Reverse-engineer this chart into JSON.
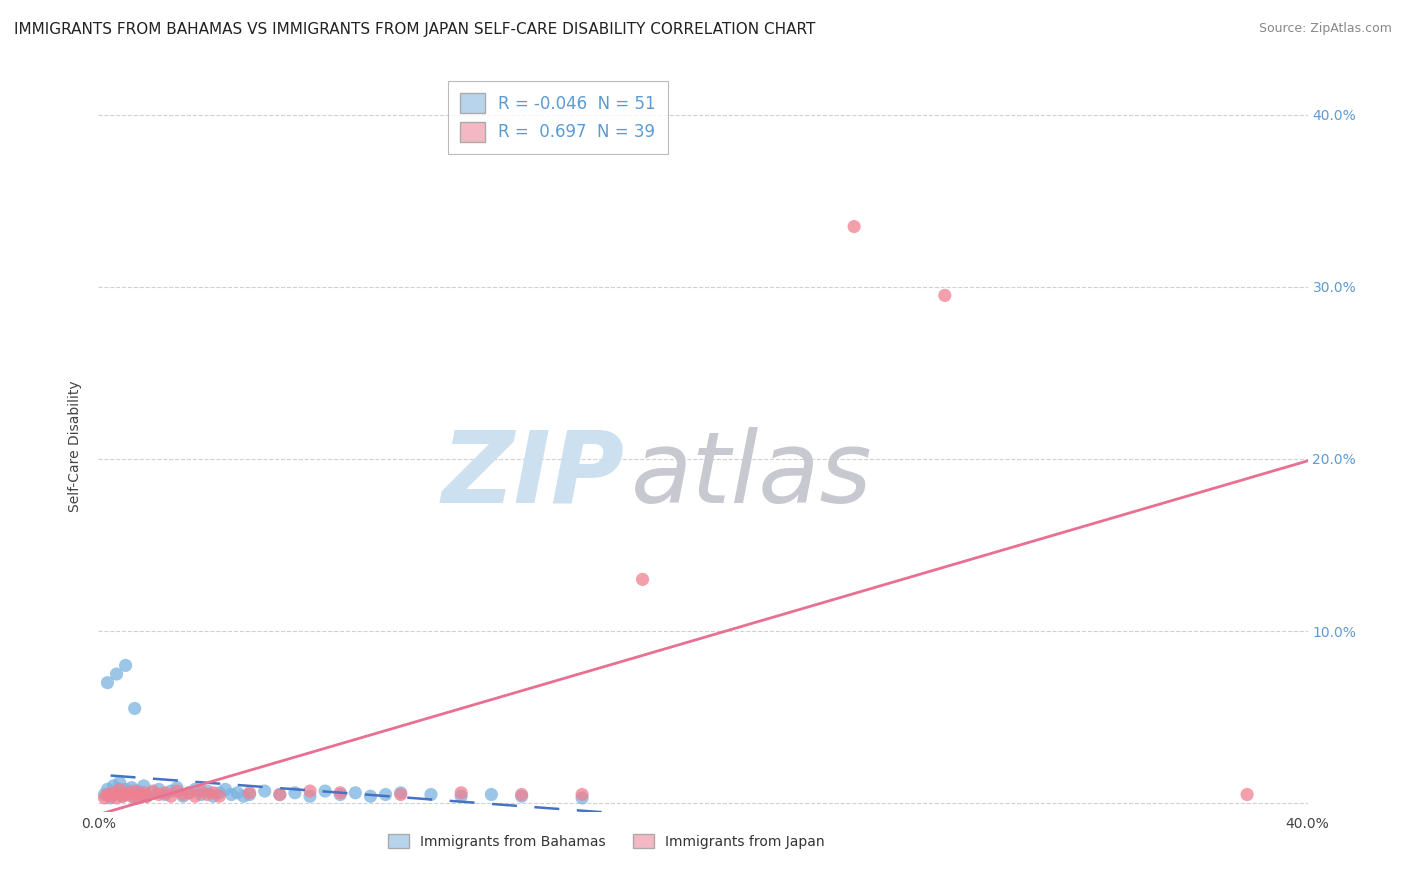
{
  "title": "IMMIGRANTS FROM BAHAMAS VS IMMIGRANTS FROM JAPAN SELF-CARE DISABILITY CORRELATION CHART",
  "source": "Source: ZipAtlas.com",
  "ylabel": "Self-Care Disability",
  "xlim": [
    0.0,
    0.4
  ],
  "ylim": [
    -0.005,
    0.42
  ],
  "x_tick_vals": [
    0.0,
    0.1,
    0.2,
    0.3,
    0.4
  ],
  "x_tick_labels": [
    "0.0%",
    "",
    "",
    "",
    "40.0%"
  ],
  "y_tick_vals": [
    0.0,
    0.1,
    0.2,
    0.3,
    0.4
  ],
  "y_tick_labels_right": [
    "",
    "10.0%",
    "20.0%",
    "30.0%",
    "40.0%"
  ],
  "legend_entries": [
    {
      "label": "Immigrants from Bahamas",
      "color": "#b8d4ed",
      "R": "-0.046",
      "N": "51"
    },
    {
      "label": "Immigrants from Japan",
      "color": "#f4b8c4",
      "R": "0.697",
      "N": "39"
    }
  ],
  "bahamas_x": [
    0.002,
    0.003,
    0.004,
    0.005,
    0.006,
    0.007,
    0.008,
    0.009,
    0.01,
    0.011,
    0.012,
    0.013,
    0.014,
    0.015,
    0.016,
    0.018,
    0.02,
    0.022,
    0.024,
    0.026,
    0.028,
    0.03,
    0.032,
    0.034,
    0.036,
    0.038,
    0.04,
    0.042,
    0.044,
    0.046,
    0.048,
    0.05,
    0.055,
    0.06,
    0.065,
    0.07,
    0.075,
    0.08,
    0.085,
    0.09,
    0.095,
    0.1,
    0.11,
    0.12,
    0.13,
    0.14,
    0.16,
    0.003,
    0.006,
    0.009,
    0.012
  ],
  "bahamas_y": [
    0.005,
    0.008,
    0.003,
    0.01,
    0.006,
    0.012,
    0.004,
    0.008,
    0.006,
    0.009,
    0.003,
    0.007,
    0.005,
    0.01,
    0.004,
    0.006,
    0.008,
    0.005,
    0.007,
    0.009,
    0.004,
    0.006,
    0.008,
    0.005,
    0.007,
    0.004,
    0.006,
    0.008,
    0.005,
    0.006,
    0.004,
    0.005,
    0.007,
    0.005,
    0.006,
    0.004,
    0.007,
    0.005,
    0.006,
    0.004,
    0.005,
    0.006,
    0.005,
    0.004,
    0.005,
    0.004,
    0.003,
    0.07,
    0.075,
    0.08,
    0.055
  ],
  "japan_x": [
    0.002,
    0.003,
    0.004,
    0.005,
    0.006,
    0.007,
    0.008,
    0.009,
    0.01,
    0.011,
    0.012,
    0.013,
    0.014,
    0.015,
    0.016,
    0.018,
    0.02,
    0.022,
    0.024,
    0.026,
    0.028,
    0.03,
    0.032,
    0.034,
    0.036,
    0.038,
    0.04,
    0.18,
    0.25,
    0.28,
    0.38,
    0.05,
    0.06,
    0.07,
    0.08,
    0.1,
    0.12,
    0.14,
    0.16
  ],
  "japan_y": [
    0.003,
    0.005,
    0.004,
    0.006,
    0.003,
    0.008,
    0.004,
    0.005,
    0.006,
    0.004,
    0.007,
    0.003,
    0.005,
    0.006,
    0.004,
    0.007,
    0.005,
    0.006,
    0.004,
    0.007,
    0.005,
    0.006,
    0.004,
    0.007,
    0.005,
    0.006,
    0.004,
    0.13,
    0.335,
    0.295,
    0.005,
    0.006,
    0.005,
    0.007,
    0.006,
    0.005,
    0.006,
    0.005,
    0.005
  ],
  "background_color": "#ffffff",
  "grid_color": "#cccccc",
  "scatter_color_bahamas": "#7ab3e0",
  "scatter_color_japan": "#f08090",
  "line_color_bahamas": "#4472c4",
  "line_color_japan": "#e87090",
  "title_fontsize": 11,
  "tick_fontsize": 10,
  "right_tick_color": "#5b9bd5",
  "watermark_zip_color": "#cce0f0",
  "watermark_atlas_color": "#c8c8d0"
}
